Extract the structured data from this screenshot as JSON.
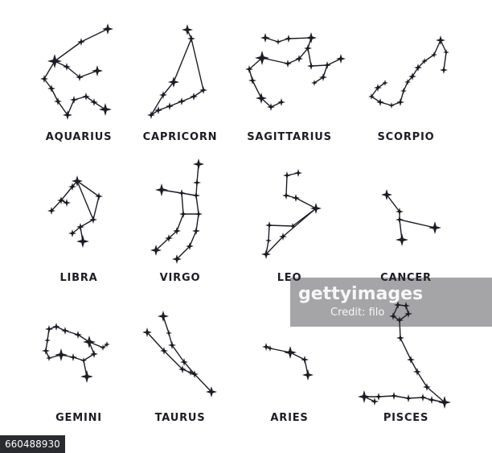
{
  "colors": {
    "ink": "#1c1c24",
    "background": "#ffffff"
  },
  "constellations": [
    {
      "id": "aquarius",
      "name": "AQUARIUS"
    },
    {
      "id": "capricorn",
      "name": "CAPRICORN"
    },
    {
      "id": "sagittarius",
      "name": "SAGITTARIUS"
    },
    {
      "id": "scorpio",
      "name": "SCORPIO"
    },
    {
      "id": "libra",
      "name": "LIBRA"
    },
    {
      "id": "virgo",
      "name": "VIRGO"
    },
    {
      "id": "leo",
      "name": "LEO"
    },
    {
      "id": "cancer",
      "name": "CANCER"
    },
    {
      "id": "gemini",
      "name": "GEMINI"
    },
    {
      "id": "taurus",
      "name": "TAURUS"
    },
    {
      "id": "aries",
      "name": "ARIES"
    },
    {
      "id": "pisces",
      "name": "PISCES"
    }
  ],
  "watermark": {
    "brand": "gettyimages",
    "credit": "Credit: filo",
    "image_id": "660488930"
  }
}
